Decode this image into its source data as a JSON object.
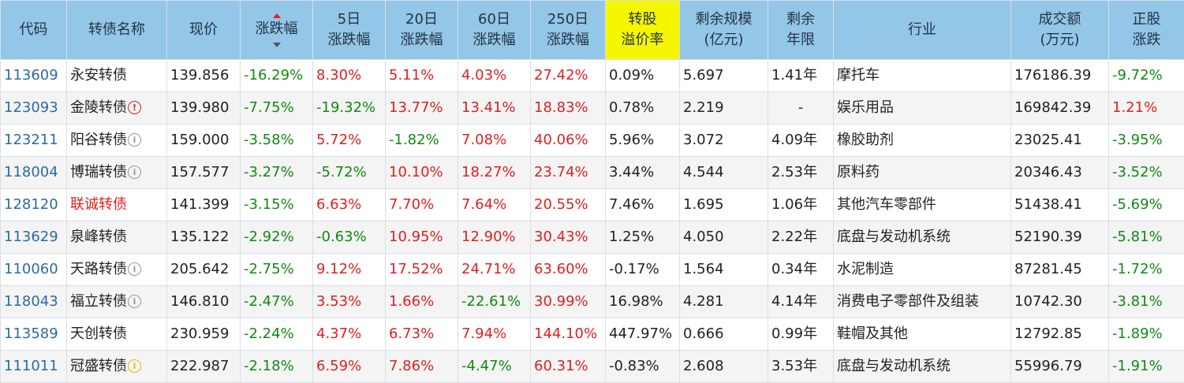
{
  "headers": {
    "code": "代码",
    "name": "转债名称",
    "price": "现价",
    "change": "涨跌幅",
    "d5": [
      "5日",
      "涨跌幅"
    ],
    "d20": [
      "20日",
      "涨跌幅"
    ],
    "d60": [
      "60日",
      "涨跌幅"
    ],
    "d250": [
      "250日",
      "涨跌幅"
    ],
    "premium": [
      "转股",
      "溢价率"
    ],
    "scale": [
      "剩余规模",
      "(亿元)"
    ],
    "years": [
      "剩余",
      "年限"
    ],
    "industry": "行业",
    "volume": [
      "成交额",
      "(万元)"
    ],
    "stock": [
      "正股",
      "涨跌"
    ]
  },
  "colors": {
    "header_bg": "#94c6e8",
    "highlight": "#f6f600",
    "up": "#e02020",
    "down": "#108a10",
    "code": "#2c6aa3"
  },
  "sort_indicator": "sort-desc-icon",
  "rows": [
    {
      "code": "113609",
      "name": "永安转债",
      "badge": "",
      "name_red": false,
      "price": "139.856",
      "change": "-16.29%",
      "d5": "8.30%",
      "d20": "5.11%",
      "d60": "4.03%",
      "d250": "27.42%",
      "premium": "0.09%",
      "scale": "5.697",
      "years": "1.41年",
      "industry": "摩托车",
      "volume": "176186.39",
      "stock": "-9.72%"
    },
    {
      "code": "123093",
      "name": "金陵转债",
      "badge": "red",
      "name_red": false,
      "price": "139.980",
      "change": "-7.75%",
      "d5": "-19.32%",
      "d20": "13.77%",
      "d60": "13.41%",
      "d250": "18.83%",
      "premium": "0.78%",
      "scale": "2.219",
      "years": "-",
      "industry": "娱乐用品",
      "volume": "169842.39",
      "stock": "1.21%"
    },
    {
      "code": "123211",
      "name": "阳谷转债",
      "badge": "gray",
      "name_red": false,
      "price": "159.000",
      "change": "-3.58%",
      "d5": "5.72%",
      "d20": "-1.82%",
      "d60": "7.08%",
      "d250": "40.06%",
      "premium": "5.96%",
      "scale": "3.072",
      "years": "4.09年",
      "industry": "橡胶助剂",
      "volume": "23025.41",
      "stock": "-3.95%"
    },
    {
      "code": "118004",
      "name": "博瑞转债",
      "badge": "gray",
      "name_red": false,
      "price": "157.577",
      "change": "-3.27%",
      "d5": "-5.72%",
      "d20": "10.10%",
      "d60": "18.27%",
      "d250": "23.74%",
      "premium": "3.44%",
      "scale": "4.544",
      "years": "2.53年",
      "industry": "原料药",
      "volume": "20346.43",
      "stock": "-3.52%"
    },
    {
      "code": "128120",
      "name": "联诚转债",
      "badge": "",
      "name_red": true,
      "price": "141.399",
      "change": "-3.15%",
      "d5": "6.63%",
      "d20": "7.70%",
      "d60": "7.64%",
      "d250": "20.55%",
      "premium": "7.46%",
      "scale": "1.695",
      "years": "1.06年",
      "industry": "其他汽车零部件",
      "volume": "51438.41",
      "stock": "-5.69%"
    },
    {
      "code": "113629",
      "name": "泉峰转债",
      "badge": "",
      "name_red": false,
      "price": "135.122",
      "change": "-2.92%",
      "d5": "-0.63%",
      "d20": "10.95%",
      "d60": "12.90%",
      "d250": "30.43%",
      "premium": "1.25%",
      "scale": "4.050",
      "years": "2.22年",
      "industry": "底盘与发动机系统",
      "volume": "52190.39",
      "stock": "-5.81%"
    },
    {
      "code": "110060",
      "name": "天路转债",
      "badge": "gray",
      "name_red": false,
      "price": "205.642",
      "change": "-2.75%",
      "d5": "9.12%",
      "d20": "17.52%",
      "d60": "24.71%",
      "d250": "63.60%",
      "premium": "-0.17%",
      "scale": "1.564",
      "years": "0.34年",
      "industry": "水泥制造",
      "volume": "87281.45",
      "stock": "-1.72%"
    },
    {
      "code": "118043",
      "name": "福立转债",
      "badge": "gray",
      "name_red": false,
      "price": "146.810",
      "change": "-2.47%",
      "d5": "3.53%",
      "d20": "1.66%",
      "d60": "-22.61%",
      "d250": "30.99%",
      "premium": "16.98%",
      "scale": "4.281",
      "years": "4.14年",
      "industry": "消费电子零部件及组装",
      "volume": "10742.30",
      "stock": "-3.81%"
    },
    {
      "code": "113589",
      "name": "天创转债",
      "badge": "",
      "name_red": false,
      "price": "230.959",
      "change": "-2.24%",
      "d5": "4.37%",
      "d20": "6.73%",
      "d60": "7.94%",
      "d250": "144.10%",
      "premium": "447.97%",
      "scale": "0.666",
      "years": "0.99年",
      "industry": "鞋帽及其他",
      "volume": "12792.85",
      "stock": "-1.89%"
    },
    {
      "code": "111011",
      "name": "冠盛转债",
      "badge": "yellow",
      "name_red": false,
      "price": "222.987",
      "change": "-2.18%",
      "d5": "6.59%",
      "d20": "7.86%",
      "d60": "-4.47%",
      "d250": "60.31%",
      "premium": "-0.83%",
      "scale": "2.608",
      "years": "3.53年",
      "industry": "底盘与发动机系统",
      "volume": "55996.79",
      "stock": "-1.91%"
    }
  ]
}
